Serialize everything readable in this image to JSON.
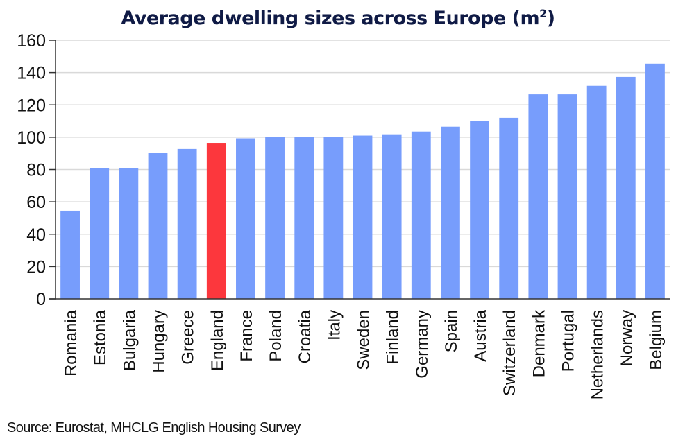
{
  "chart_data": {
    "type": "bar",
    "title": "Average dwelling sizes across Europe (m",
    "title_superscript": "2",
    "title_suffix": ")",
    "xlabel": "",
    "ylabel": "",
    "ylim": [
      0,
      160
    ],
    "yticks": [
      0,
      20,
      40,
      60,
      80,
      100,
      120,
      140,
      160
    ],
    "grid": true,
    "legend": "none",
    "categories": [
      "Romania",
      "Estonia",
      "Bulgaria",
      "Hungary",
      "Greece",
      "England",
      "France",
      "Poland",
      "Croatia",
      "Italy",
      "Sweden",
      "Finland",
      "Germany",
      "Spain",
      "Austria",
      "Switzerland",
      "Denmark",
      "Portugal",
      "Netherlands",
      "Norway",
      "Belgium"
    ],
    "values": [
      54.5,
      80.7,
      81.0,
      90.5,
      92.7,
      96.5,
      99.3,
      100.0,
      100.0,
      100.2,
      101.0,
      101.8,
      103.5,
      106.5,
      110.0,
      112.0,
      126.5,
      126.5,
      131.8,
      137.3,
      145.5
    ],
    "highlight": "England",
    "colors": {
      "default": "#779dfc",
      "highlight": "#fc373d",
      "grid": "#d9d9d9",
      "axis": "#333333",
      "title": "#0f1a45"
    }
  },
  "source": "Source: Eurostat, MHCLG English Housing Survey"
}
